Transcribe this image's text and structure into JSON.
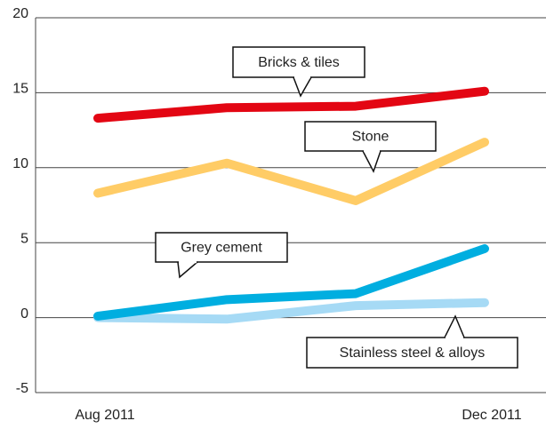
{
  "chart_data": {
    "type": "line",
    "categories": [
      "Aug 2011",
      null,
      null,
      "Dec 2011"
    ],
    "series": [
      {
        "name": "Bricks & tiles",
        "color": "#e30613",
        "values": [
          13.3,
          14.0,
          14.1,
          15.1
        ]
      },
      {
        "name": "Stone",
        "color": "#ffcc66",
        "values": [
          8.3,
          10.3,
          7.8,
          11.7
        ]
      },
      {
        "name": "Grey cement",
        "color": "#00aee0",
        "values": [
          0.1,
          1.2,
          1.6,
          4.6
        ]
      },
      {
        "name": "Stainless steel & alloys",
        "color": "#a6daf5",
        "values": [
          0.0,
          -0.1,
          0.8,
          1.0
        ]
      }
    ],
    "ylim": [
      -5,
      20
    ],
    "yticks": [
      -5,
      0,
      5,
      10,
      15,
      20
    ],
    "grid": true
  }
}
